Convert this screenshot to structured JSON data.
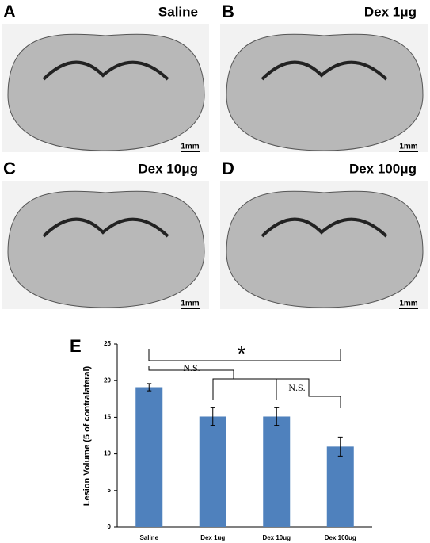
{
  "panels": [
    {
      "letter": "A",
      "title": "Saline",
      "scale": "1mm"
    },
    {
      "letter": "B",
      "title": "Dex 1μg",
      "scale": "1mm"
    },
    {
      "letter": "C",
      "title": "Dex 10μg",
      "scale": "1mm"
    },
    {
      "letter": "D",
      "title": "Dex 100μg",
      "scale": "1mm"
    }
  ],
  "chart_letter": "E",
  "chart_data": {
    "type": "bar",
    "ylabel": "Lesion Volume (5 of contralateral)",
    "categories": [
      "Saline",
      "Dex 1ug",
      "Dex 10ug",
      "Dex 100ug"
    ],
    "values": [
      19.1,
      15.1,
      15.1,
      11.0
    ],
    "errors": [
      0.5,
      1.2,
      1.2,
      1.3
    ],
    "color": "#4f81bd",
    "ylim": [
      0,
      25
    ],
    "yticks": [
      0,
      5,
      10,
      15,
      20,
      25
    ],
    "annotations": [
      "N.S.",
      "N.S.",
      "*"
    ]
  }
}
